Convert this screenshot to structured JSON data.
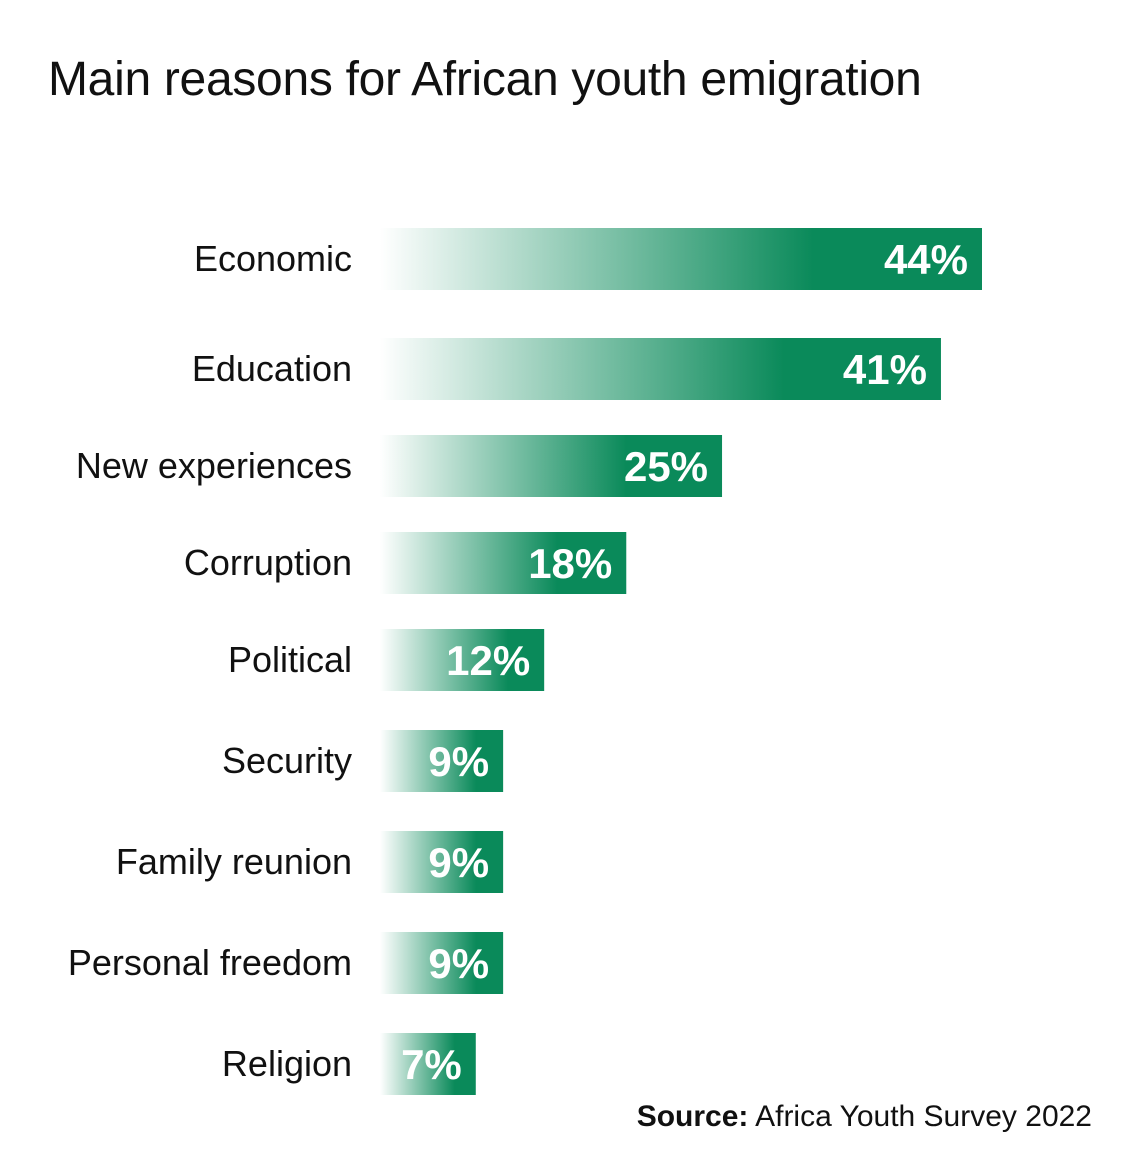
{
  "chart_data": {
    "type": "bar",
    "orientation": "horizontal",
    "title": "Main reasons for African youth emigration",
    "categories": [
      "Economic",
      "Education",
      "New experiences",
      "Corruption",
      "Political",
      "Security",
      "Family reunion",
      "Personal freedom",
      "Religion"
    ],
    "values": [
      44,
      41,
      25,
      18,
      12,
      9,
      9,
      9,
      7
    ],
    "value_labels": [
      "44%",
      "41%",
      "25%",
      "18%",
      "12%",
      "9%",
      "9%",
      "9%",
      "7%"
    ],
    "unit": "%",
    "xlim": [
      0,
      44
    ],
    "grid": false,
    "legend": "none",
    "bar_color": "#0a8a5a",
    "bar_fade_color": "#ffffff",
    "label_color": "#ffffff"
  },
  "source": {
    "label": "Source:",
    "text": "Africa Youth Survey 2022"
  }
}
